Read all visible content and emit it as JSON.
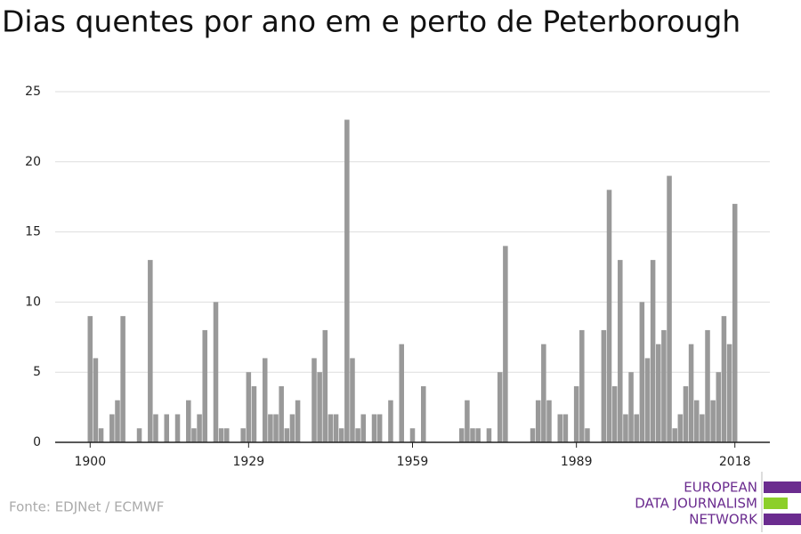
{
  "chart_data": {
    "type": "bar",
    "title": "Dias quentes por ano em e perto de Peterborough",
    "x": [
      1900,
      1901,
      1902,
      1903,
      1904,
      1905,
      1906,
      1907,
      1908,
      1909,
      1910,
      1911,
      1912,
      1913,
      1914,
      1915,
      1916,
      1917,
      1918,
      1919,
      1920,
      1921,
      1922,
      1923,
      1924,
      1925,
      1926,
      1927,
      1928,
      1929,
      1930,
      1931,
      1932,
      1933,
      1934,
      1935,
      1936,
      1937,
      1938,
      1939,
      1940,
      1941,
      1942,
      1943,
      1944,
      1945,
      1946,
      1947,
      1948,
      1949,
      1950,
      1951,
      1952,
      1953,
      1954,
      1955,
      1956,
      1957,
      1958,
      1959,
      1960,
      1961,
      1962,
      1963,
      1964,
      1965,
      1966,
      1967,
      1968,
      1969,
      1970,
      1971,
      1972,
      1973,
      1974,
      1975,
      1976,
      1977,
      1978,
      1979,
      1980,
      1981,
      1982,
      1983,
      1984,
      1985,
      1986,
      1987,
      1988,
      1989,
      1990,
      1991,
      1992,
      1993,
      1994,
      1995,
      1996,
      1997,
      1998,
      1999,
      2000,
      2001,
      2002,
      2003,
      2004,
      2005,
      2006,
      2007,
      2008,
      2009,
      2010,
      2011,
      2012,
      2013,
      2014,
      2015,
      2016,
      2017,
      2018
    ],
    "values": [
      9,
      6,
      1,
      0,
      2,
      3,
      9,
      0,
      0,
      1,
      0,
      13,
      2,
      0,
      2,
      0,
      2,
      0,
      3,
      1,
      2,
      8,
      0,
      10,
      1,
      1,
      0,
      0,
      1,
      5,
      4,
      0,
      6,
      2,
      2,
      4,
      1,
      2,
      3,
      0,
      0,
      6,
      5,
      8,
      2,
      2,
      1,
      23,
      6,
      1,
      2,
      0,
      2,
      2,
      0,
      3,
      0,
      7,
      0,
      1,
      0,
      4,
      0,
      0,
      0,
      0,
      0,
      0,
      1,
      3,
      1,
      1,
      0,
      1,
      0,
      5,
      14,
      0,
      0,
      0,
      0,
      1,
      3,
      7,
      3,
      0,
      2,
      2,
      0,
      4,
      8,
      1,
      0,
      0,
      8,
      18,
      4,
      13,
      2,
      5,
      2,
      10,
      6,
      13,
      7,
      8,
      19,
      1,
      2,
      4,
      7,
      3,
      2,
      8,
      3,
      5,
      9,
      7,
      17
    ],
    "color": "#999999",
    "xlim": [
      1893.6,
      2024.4
    ],
    "xticks": [
      1900,
      1929,
      1959,
      1989,
      2018
    ],
    "ylim": [
      0,
      25
    ],
    "yticks": [
      0,
      5,
      10,
      15,
      20,
      25
    ],
    "grid": true,
    "source": "Fonte: EDJNet / ECMWF",
    "logo": [
      "EUROPEAN",
      "DATA JOURNALISM",
      "NETWORK"
    ]
  }
}
